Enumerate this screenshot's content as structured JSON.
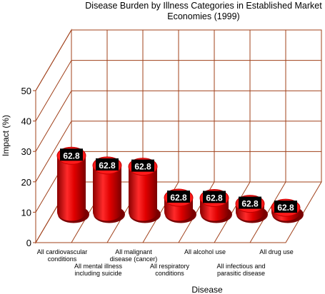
{
  "chart_data": {
    "type": "bar3d",
    "title": "Disease Burden by Illness Categories in Established Market Economies (1999)",
    "x_label": "Disease",
    "y_label": "Impact (%)",
    "categories": [
      "All cardiovascular conditions",
      "All mental illness including suicide",
      "All malignant disease (cancer)",
      "All respiratory conditions",
      "All alcohol use",
      "All infectious and parasitic disease",
      "All drug use"
    ],
    "values": [
      18.6,
      15.4,
      15.0,
      4.8,
      4.7,
      2.8,
      1.5
    ],
    "point_labels": [
      "62.8",
      "62.8",
      "62.8",
      "62.8",
      "62.8",
      "62.8",
      "62.8"
    ],
    "color": "#e00000",
    "ylim": [
      0,
      50
    ],
    "yticks": [
      0,
      10,
      20,
      30,
      40,
      50
    ],
    "grid": true
  }
}
